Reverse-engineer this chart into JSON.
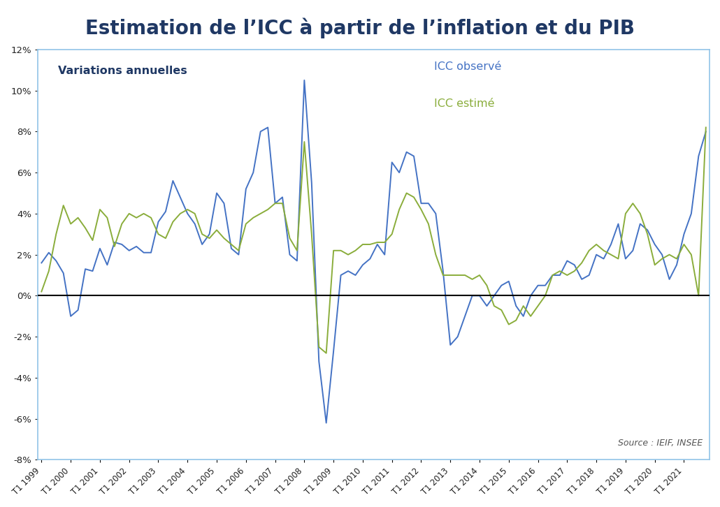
{
  "title": "Estimation de l’ICC à partir de l’inflation et du PIB",
  "subtitle": "Variations annuelles",
  "source": "Source : IEIF, INSEE",
  "legend_icc_observe": "ICC observé",
  "legend_icc_estime": "ICC estimé",
  "color_observe": "#4472C4",
  "color_estime": "#8AAD3B",
  "color_zero_line": "#000000",
  "ylim": [
    -0.08,
    0.12
  ],
  "yticks": [
    -0.08,
    -0.06,
    -0.04,
    -0.02,
    0.0,
    0.02,
    0.04,
    0.06,
    0.08,
    0.1,
    0.12
  ],
  "background_color": "#ffffff",
  "border_color": "#91C3E8",
  "title_color": "#1F3864",
  "x_labels": [
    "T1 1999",
    "T1 2000",
    "T1 2001",
    "T1 2002",
    "T1 2003",
    "T1 2004",
    "T1 2005",
    "T1 2006",
    "T1 2007",
    "T1 2008",
    "T1 2009",
    "T1 2010",
    "T1 2011",
    "T1 2012",
    "T1 2013",
    "T1 2014",
    "T1 2015",
    "T1 2016",
    "T1 2017",
    "T1 2018",
    "T1 2019",
    "T1 2020",
    "T1 2021"
  ],
  "icc_observe": [
    0.016,
    0.021,
    0.017,
    0.011,
    -0.01,
    -0.007,
    0.013,
    0.012,
    0.023,
    0.015,
    0.026,
    0.025,
    0.022,
    0.024,
    0.021,
    0.021,
    0.036,
    0.041,
    0.056,
    0.048,
    0.04,
    0.035,
    0.025,
    0.03,
    0.05,
    0.045,
    0.023,
    0.02,
    0.052,
    0.06,
    0.08,
    0.082,
    0.045,
    0.048,
    0.02,
    0.017,
    0.105,
    0.055,
    -0.032,
    -0.062,
    -0.027,
    0.01,
    0.012,
    0.01,
    0.015,
    0.018,
    0.025,
    0.02,
    0.065,
    0.06,
    0.07,
    0.068,
    0.045,
    0.045,
    0.04,
    0.012,
    -0.024,
    -0.02,
    -0.01,
    0.0,
    0.0,
    -0.005,
    0.0,
    0.005,
    0.007,
    -0.005,
    -0.01,
    0.0,
    0.005,
    0.005,
    0.01,
    0.01,
    0.017,
    0.015,
    0.008,
    0.01,
    0.02,
    0.018,
    0.025,
    0.035,
    0.018,
    0.022,
    0.035,
    0.032,
    0.025,
    0.02,
    0.008,
    0.015,
    0.03,
    0.04,
    0.068,
    0.08
  ],
  "icc_estime": [
    0.002,
    0.012,
    0.03,
    0.044,
    0.035,
    0.038,
    0.033,
    0.027,
    0.042,
    0.038,
    0.024,
    0.035,
    0.04,
    0.038,
    0.04,
    0.038,
    0.03,
    0.028,
    0.036,
    0.04,
    0.042,
    0.04,
    0.03,
    0.028,
    0.032,
    0.028,
    0.025,
    0.022,
    0.035,
    0.038,
    0.04,
    0.042,
    0.045,
    0.045,
    0.028,
    0.022,
    0.075,
    0.03,
    -0.025,
    -0.028,
    0.022,
    0.022,
    0.02,
    0.022,
    0.025,
    0.025,
    0.026,
    0.026,
    0.03,
    0.042,
    0.05,
    0.048,
    0.042,
    0.035,
    0.02,
    0.01,
    0.01,
    0.01,
    0.01,
    0.008,
    0.01,
    0.005,
    -0.005,
    -0.007,
    -0.014,
    -0.012,
    -0.005,
    -0.01,
    -0.005,
    0.0,
    0.01,
    0.012,
    0.01,
    0.012,
    0.016,
    0.022,
    0.025,
    0.022,
    0.02,
    0.018,
    0.04,
    0.045,
    0.04,
    0.03,
    0.015,
    0.018,
    0.02,
    0.018,
    0.025,
    0.02,
    0.0,
    0.082
  ]
}
